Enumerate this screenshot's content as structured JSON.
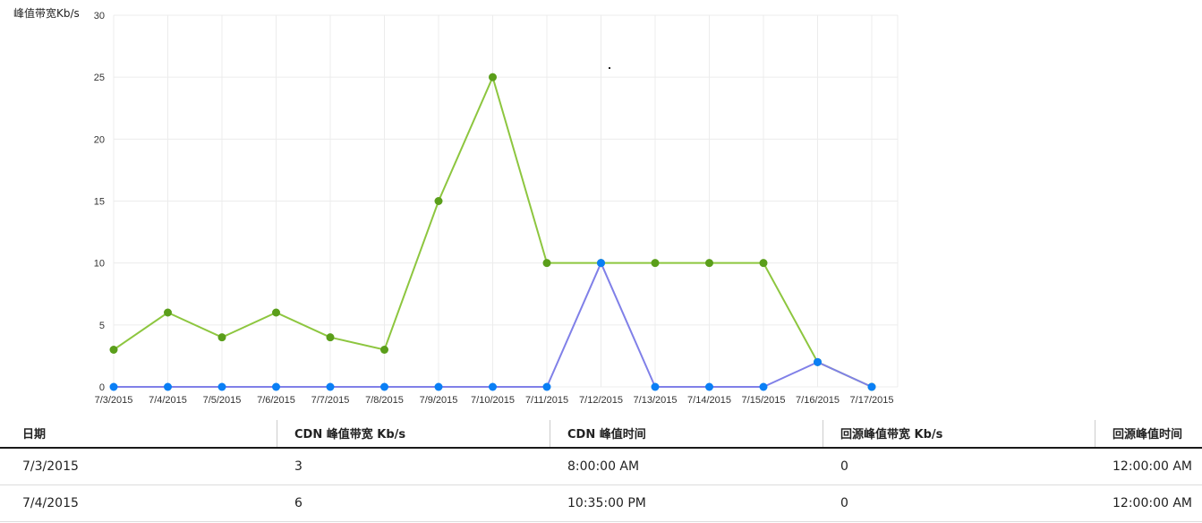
{
  "chart_data": {
    "type": "line",
    "ylabel": "峰值带宽Kb/s",
    "xlabel": "",
    "ylim": [
      0,
      30
    ],
    "yticks": [
      0,
      5,
      10,
      15,
      20,
      25,
      30
    ],
    "grid": true,
    "categories": [
      "7/3/2015",
      "7/4/2015",
      "7/5/2015",
      "7/6/2015",
      "7/7/2015",
      "7/8/2015",
      "7/9/2015",
      "7/10/2015",
      "7/11/2015",
      "7/12/2015",
      "7/13/2015",
      "7/14/2015",
      "7/15/2015",
      "7/16/2015",
      "7/17/2015"
    ],
    "series": [
      {
        "values": [
          3,
          6,
          4,
          6,
          4,
          3,
          15,
          25,
          10,
          10,
          10,
          10,
          10,
          2,
          0
        ],
        "line_color": "#8dc63f",
        "marker_color": "#5a9e1a"
      },
      {
        "values": [
          0,
          0,
          0,
          0,
          0,
          0,
          0,
          0,
          0,
          10,
          0,
          0,
          0,
          2,
          0
        ],
        "line_color": "#8080e8",
        "marker_color": "#0a7ff5"
      }
    ]
  },
  "table": {
    "headers": [
      "日期",
      "CDN 峰值带宽 Kb/s",
      "CDN 峰值时间",
      "回源峰值带宽 Kb/s",
      "回源峰值时间"
    ],
    "rows": [
      [
        "7/3/2015",
        "3",
        "8:00:00 AM",
        "0",
        "12:00:00 AM"
      ],
      [
        "7/4/2015",
        "6",
        "10:35:00 PM",
        "0",
        "12:00:00 AM"
      ]
    ]
  }
}
